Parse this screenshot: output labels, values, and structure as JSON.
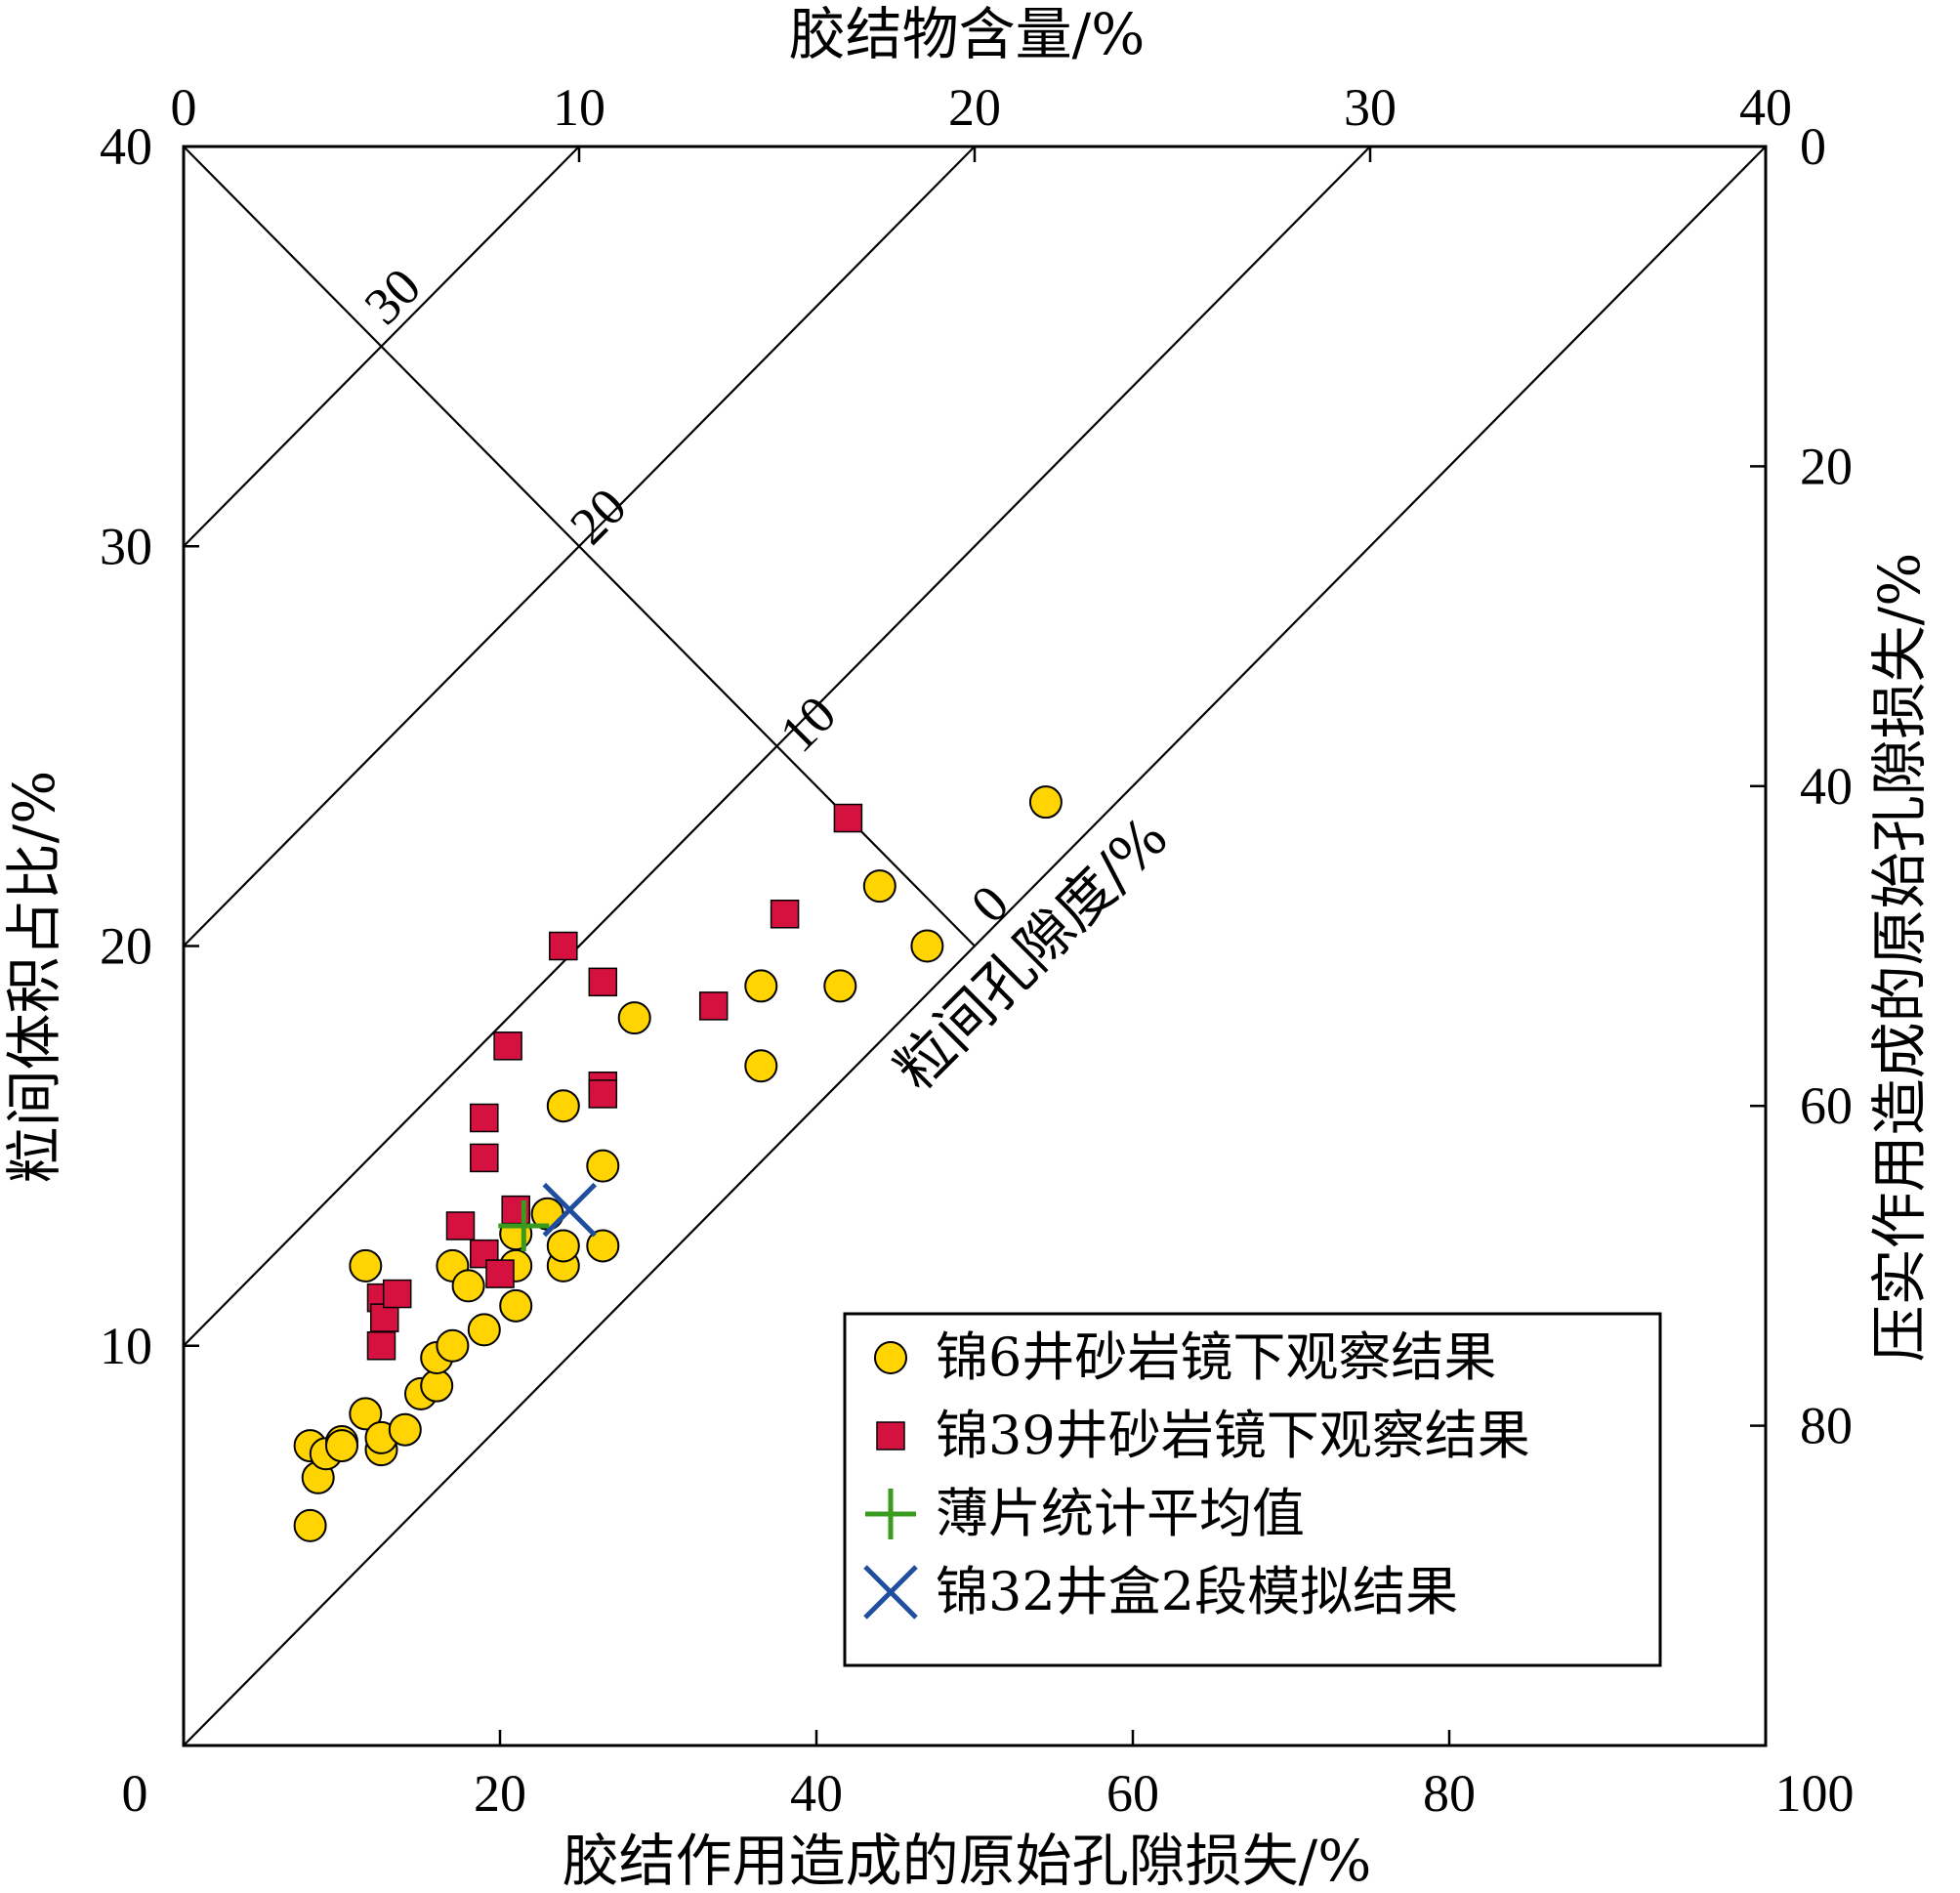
{
  "chart_data": {
    "type": "scatter",
    "x_bottom": {
      "label": "胶结作用造成的原始孔隙损失/%",
      "range": [
        0,
        100
      ],
      "ticks": [
        "0",
        "20",
        "40",
        "60",
        "80",
        "100"
      ]
    },
    "x_top": {
      "label": "胶结物含量/%",
      "range": [
        0,
        40
      ],
      "ticks": [
        "0",
        "10",
        "20",
        "30",
        "40"
      ]
    },
    "y_left": {
      "label": "粒间体积占比/%",
      "range": [
        0,
        40
      ],
      "ticks": [
        "10",
        "20",
        "30",
        "40"
      ]
    },
    "y_right": {
      "label": "压实作用造成的原始孔隙损失/%",
      "range": [
        0,
        100
      ],
      "reversed": true,
      "ticks": [
        "0",
        "20",
        "40",
        "60",
        "80"
      ]
    },
    "iso_lines": {
      "label": "粒间孔隙度/%",
      "values": [
        30,
        20,
        10,
        0
      ],
      "labels": [
        "30",
        "20",
        "10",
        "0"
      ]
    },
    "grid": false,
    "legend_position": "bottom-right",
    "series": [
      {
        "name": "锦6井砂岩镜下观察结果",
        "marker": "circle",
        "color": "#FFD400",
        "points": [
          [
            8,
            7.5
          ],
          [
            8,
            5.5
          ],
          [
            8.5,
            6.7
          ],
          [
            9,
            7.3
          ],
          [
            10,
            7.6
          ],
          [
            10,
            7.5
          ],
          [
            11.5,
            8.3
          ],
          [
            11.5,
            12
          ],
          [
            12.5,
            7.4
          ],
          [
            12.5,
            7.7
          ],
          [
            14,
            7.9
          ],
          [
            15,
            8.8
          ],
          [
            16,
            9
          ],
          [
            16,
            9.7
          ],
          [
            17,
            10
          ],
          [
            17,
            12
          ],
          [
            18,
            11.5
          ],
          [
            19,
            10.4
          ],
          [
            21,
            12
          ],
          [
            21,
            11
          ],
          [
            21,
            12.8
          ],
          [
            23,
            13.3
          ],
          [
            24,
            16
          ],
          [
            24,
            12
          ],
          [
            24,
            12.5
          ],
          [
            26.5,
            14.5
          ],
          [
            26.5,
            12.5
          ],
          [
            28.5,
            18.2
          ],
          [
            36.5,
            17
          ],
          [
            36.5,
            19
          ],
          [
            41.5,
            19
          ],
          [
            44,
            21.5
          ],
          [
            47,
            20
          ],
          [
            54.5,
            23.6
          ]
        ]
      },
      {
        "name": "锦39井砂岩镜下观察结果",
        "marker": "square",
        "color": "#D4113F",
        "points": [
          [
            12.5,
            10
          ],
          [
            12.5,
            11.2
          ],
          [
            12.7,
            10.7
          ],
          [
            13.5,
            11.3
          ],
          [
            17.5,
            13
          ],
          [
            19,
            12.3
          ],
          [
            19,
            14.7
          ],
          [
            19,
            15.7
          ],
          [
            20,
            11.8
          ],
          [
            20.5,
            17.5
          ],
          [
            21,
            13.4
          ],
          [
            24,
            20
          ],
          [
            26.5,
            19.1
          ],
          [
            26.5,
            16.5
          ],
          [
            26.5,
            16.3
          ],
          [
            33.5,
            18.5
          ],
          [
            38,
            20.8
          ],
          [
            42,
            23.2
          ]
        ]
      },
      {
        "name": "薄片统计平均值",
        "marker": "plus",
        "color": "#3A9A1E",
        "points": [
          [
            21.5,
            13
          ]
        ]
      },
      {
        "name": "锦32井盒2段模拟结果",
        "marker": "x",
        "color": "#1F4E9E",
        "points": [
          [
            24.4,
            13.4
          ]
        ]
      }
    ]
  }
}
